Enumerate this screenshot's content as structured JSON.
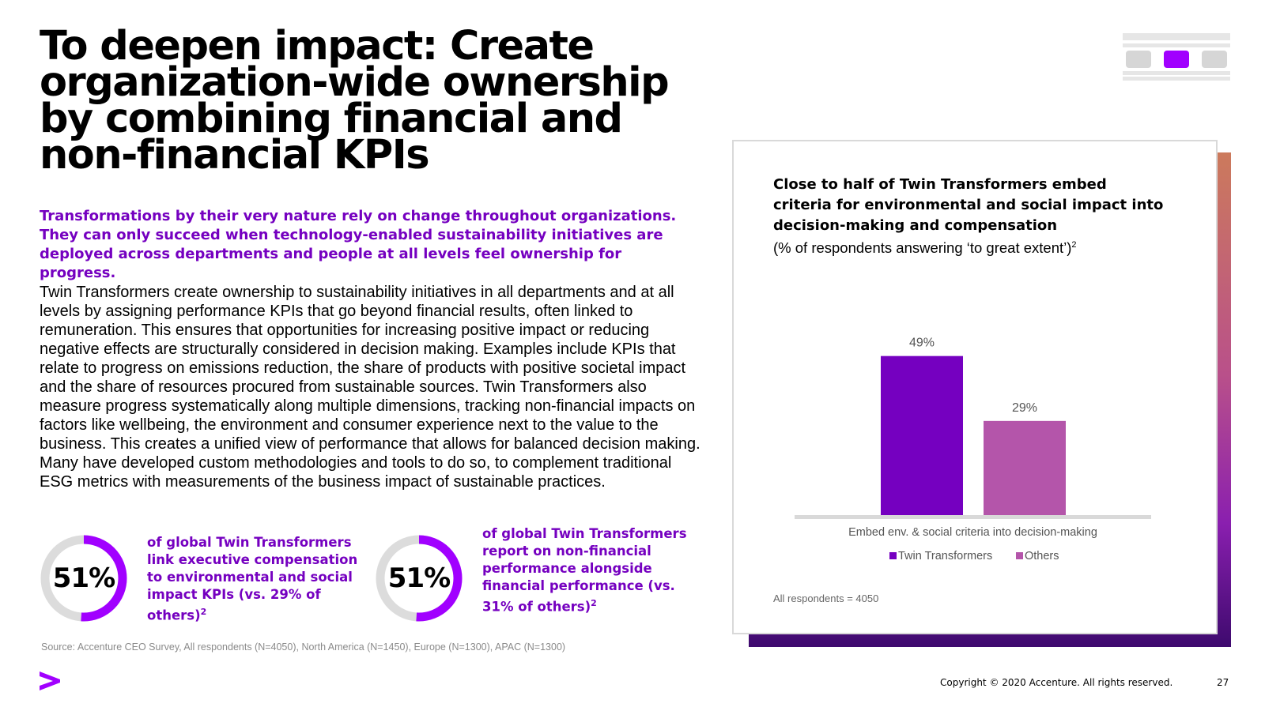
{
  "title": "To deepen impact: Create organization-wide ownership by combining financial and non-financial KPIs",
  "lead": "Transformations by their very nature rely on change throughout organizations. They can only succeed when technology-enabled sustainability initiatives are deployed across departments and people at all levels feel ownership for progress.",
  "body": "Twin Transformers create ownership to sustainability initiatives in all departments and at all levels by assigning performance KPIs that go beyond financial results, often linked to remuneration. This ensures that opportunities for increasing positive impact or reducing negative effects are structurally considered in decision making. Examples include KPIs that relate to progress on emissions reduction, the share of products with positive societal impact and the share of resources procured from sustainable sources. Twin Transformers also measure progress systematically along multiple dimensions, tracking non-financial impacts on factors like wellbeing, the environment and consumer experience next to the value to the business. This creates a unified view of performance that allows for balanced decision making. Many have developed custom methodologies and tools to do so, to complement traditional ESG metrics with measurements of the business impact of sustainable practices.",
  "stats": [
    {
      "value_label": "51%",
      "fraction": 0.51,
      "text": "of global Twin Transformers link executive compensation to environmental and social impact KPIs (vs. 29% of others)",
      "footnote": "2"
    },
    {
      "value_label": "51%",
      "fraction": 0.51,
      "text": "of global Twin Transformers report on non-financial performance alongside financial performance (vs. 31% of others)",
      "footnote": "2"
    }
  ],
  "source": "Source: Accenture CEO Survey, All respondents (N=4050), North America (N=1450), Europe (N=1300), APAC (N=1300)",
  "footer": {
    "copyright": "Copyright © 2020 Accenture. All rights reserved.",
    "page_number": "27"
  },
  "colors": {
    "accent_purple": "#7500c0",
    "twin_transformers": "#7500c0",
    "others": "#b455aa",
    "ring_track": "#dcdcdc"
  },
  "icons": {
    "logo": "accenture-chevron-icon",
    "navigation": "section-navigation-icon"
  },
  "chart_data": {
    "type": "bar",
    "title": "Close to half of Twin Transformers embed criteria for environmental and social impact into decision-making and compensation",
    "subtitle": "(% of respondents answering ‘to great extent’)",
    "subtitle_footnote": "2",
    "categories": [
      "Embed env. & social criteria into decision-making"
    ],
    "series": [
      {
        "name": "Twin Transformers",
        "values": [
          49
        ],
        "labels": [
          "49%"
        ],
        "color": "#7500c0"
      },
      {
        "name": "Others",
        "values": [
          29
        ],
        "labels": [
          "29%"
        ],
        "color": "#b455aa"
      }
    ],
    "ylim": [
      0,
      55
    ],
    "legend_position": "bottom",
    "grid": false,
    "note": "All respondents = 4050"
  }
}
